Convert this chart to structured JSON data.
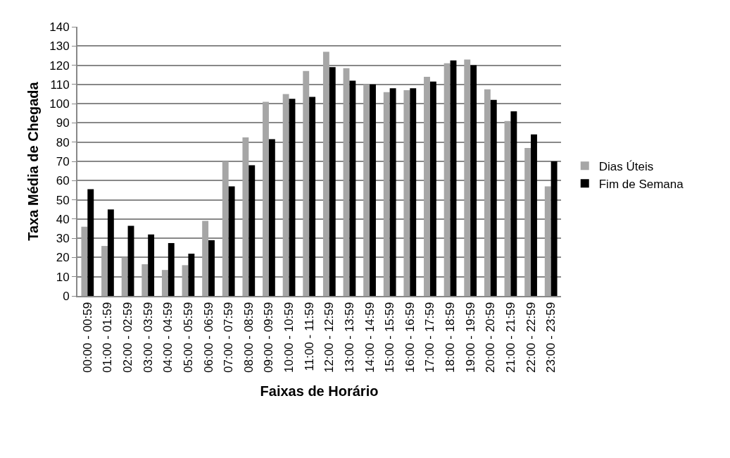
{
  "chart_data": {
    "type": "bar",
    "xlabel": "Faixas de Horário",
    "ylabel": "Taxa Média de Chegada",
    "categories": [
      "00:00 - 00:59",
      "01:00 - 01:59",
      "02:00 - 02:59",
      "03:00 - 03:59",
      "04:00 - 04:59",
      "05:00 - 05:59",
      "06:00 - 06:59",
      "07:00 - 07:59",
      "08:00 - 08:59",
      "09:00 - 09:59",
      "10:00 - 10:59",
      "11:00 - 11:59",
      "12:00 - 12:59",
      "13:00 - 13:59",
      "14:00 - 14:59",
      "15:00 - 15:59",
      "16:00 - 16:59",
      "17:00 - 17:59",
      "18:00 - 18:59",
      "19:00 - 19:59",
      "20:00 - 20:59",
      "21:00 - 21:59",
      "22:00 - 22:59",
      "23:00 - 23:59"
    ],
    "series": [
      {
        "name": "Dias Úteis",
        "color": "#a6a6a6",
        "values": [
          36,
          26,
          20,
          16.5,
          13.5,
          16,
          39,
          70,
          82.5,
          101,
          105,
          117,
          127,
          118.5,
          110,
          106,
          107,
          114,
          121,
          123,
          107.5,
          91,
          77,
          57
        ]
      },
      {
        "name": "Fim de Semana",
        "color": "#000000",
        "values": [
          55.5,
          45,
          36.5,
          32,
          27.5,
          22,
          29,
          57,
          68,
          81.5,
          102.5,
          103.5,
          119,
          112,
          110,
          108,
          108,
          111.5,
          122.5,
          120,
          102,
          96,
          84,
          70
        ]
      }
    ],
    "ylim": [
      0,
      140
    ],
    "yticks": [
      0,
      10,
      20,
      30,
      40,
      50,
      60,
      70,
      80,
      90,
      100,
      110,
      120,
      130,
      140
    ],
    "grid": "y",
    "legend": "right"
  }
}
